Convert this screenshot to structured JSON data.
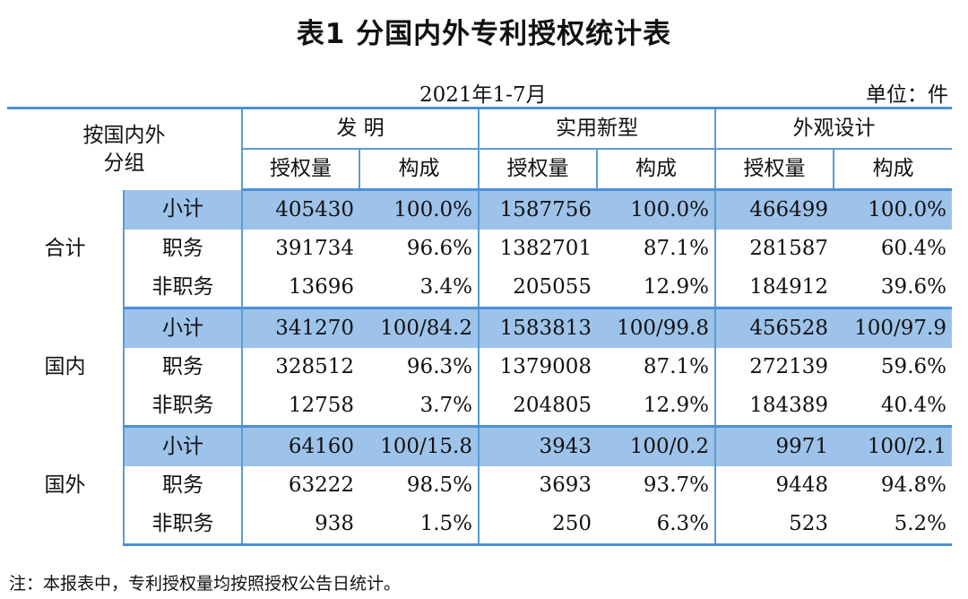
{
  "title": "表1 分国内外专利授权统计表",
  "period": "2021年1-7月",
  "unit": "单位：件",
  "header": {
    "group_label": "按国内外\n分组",
    "categories": [
      "发 明",
      "实用新型",
      "外观设计"
    ],
    "sub_columns": [
      "授权量",
      "构成"
    ]
  },
  "groups": [
    {
      "name": "合计",
      "rows": [
        {
          "label": "小计",
          "values": [
            "405430",
            "100.0%",
            "1587756",
            "100.0%",
            "466499",
            "100.0%"
          ]
        },
        {
          "label": "职务",
          "values": [
            "391734",
            "96.6%",
            "1382701",
            "87.1%",
            "281587",
            "60.4%"
          ]
        },
        {
          "label": "非职务",
          "values": [
            "13696",
            "3.4%",
            "205055",
            "12.9%",
            "184912",
            "39.6%"
          ]
        }
      ]
    },
    {
      "name": "国内",
      "rows": [
        {
          "label": "小计",
          "values": [
            "341270",
            "100/84.2",
            "1583813",
            "100/99.8",
            "456528",
            "100/97.9"
          ]
        },
        {
          "label": "职务",
          "values": [
            "328512",
            "96.3%",
            "1379008",
            "87.1%",
            "272139",
            "59.6%"
          ]
        },
        {
          "label": "非职务",
          "values": [
            "12758",
            "3.7%",
            "204805",
            "12.9%",
            "184389",
            "40.4%"
          ]
        }
      ]
    },
    {
      "name": "国外",
      "rows": [
        {
          "label": "小计",
          "values": [
            "64160",
            "100/15.8",
            "3943",
            "100/0.2",
            "9971",
            "100/2.1"
          ]
        },
        {
          "label": "职务",
          "values": [
            "63222",
            "98.5%",
            "3693",
            "93.7%",
            "9448",
            "94.8%"
          ]
        },
        {
          "label": "非职务",
          "values": [
            "938",
            "1.5%",
            "250",
            "6.3%",
            "523",
            "5.2%"
          ]
        }
      ]
    }
  ],
  "note": "注：本报表中，专利授权量均按照授权公告日统计。",
  "colors": {
    "subtotal_fill": "#9dc3ea",
    "rule": "#4a90d9"
  }
}
